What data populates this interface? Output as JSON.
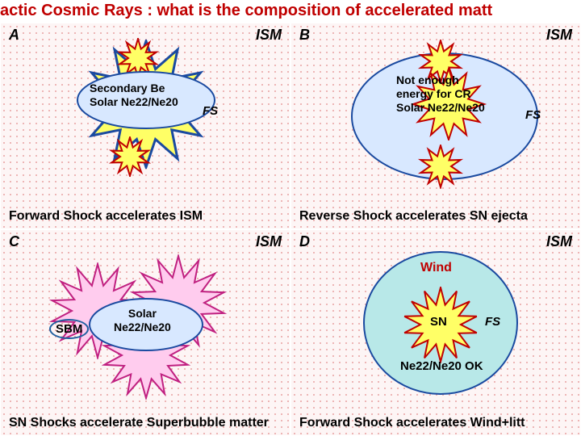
{
  "title": {
    "text": "actic Cosmic Rays : what is the composition of accelerated matt",
    "color": "#c00000"
  },
  "panels": {
    "A": {
      "label": "A",
      "ism": "ISM",
      "caption": "Forward Shock accelerates ISM",
      "center_text": "Secondary Be\nSolar Ne22/Ne20",
      "fs": "FS",
      "colors": {
        "burst_big_fill": "#ffff66",
        "burst_big_stroke": "#1a4aa0",
        "burst_small_fill": "#ffff66",
        "burst_small_stroke": "#c00000",
        "ellipse_fill": "#d8e8ff",
        "ellipse_stroke": "#1a4aa0"
      }
    },
    "B": {
      "label": "B",
      "ism": "ISM",
      "caption": "Reverse Shock accelerates SN ejecta",
      "center_text": "Not enough\nenergy for CR\nSolar Ne22/Ne20",
      "fs": "FS",
      "colors": {
        "burst_fill": "#ffff66",
        "burst_stroke": "#c00000",
        "ellipse_fill": "#d8e8ff",
        "ellipse_stroke": "#1a4aa0"
      }
    },
    "C": {
      "label": "C",
      "ism": "ISM",
      "caption": "SN Shocks accelerate Superbubble matter",
      "center_text": "Solar\nNe22/Ne20",
      "sbm": "SBM",
      "colors": {
        "burst_fill": "#ffccee",
        "burst_stroke": "#c02080",
        "ellipse_fill": "#d8e8ff",
        "ellipse_stroke": "#1a4aa0"
      }
    },
    "D": {
      "label": "D",
      "ism": "ISM",
      "caption": "Forward Shock accelerates Wind+litt",
      "wind": "Wind",
      "sn": "SN",
      "fs": "FS",
      "ne_ok": "Ne22/Ne20 OK",
      "colors": {
        "burst_fill": "#ffff66",
        "burst_stroke": "#c00000",
        "circle_fill": "#b8e8e8",
        "circle_stroke": "#1a4aa0",
        "wind_color": "#c00000"
      }
    }
  }
}
